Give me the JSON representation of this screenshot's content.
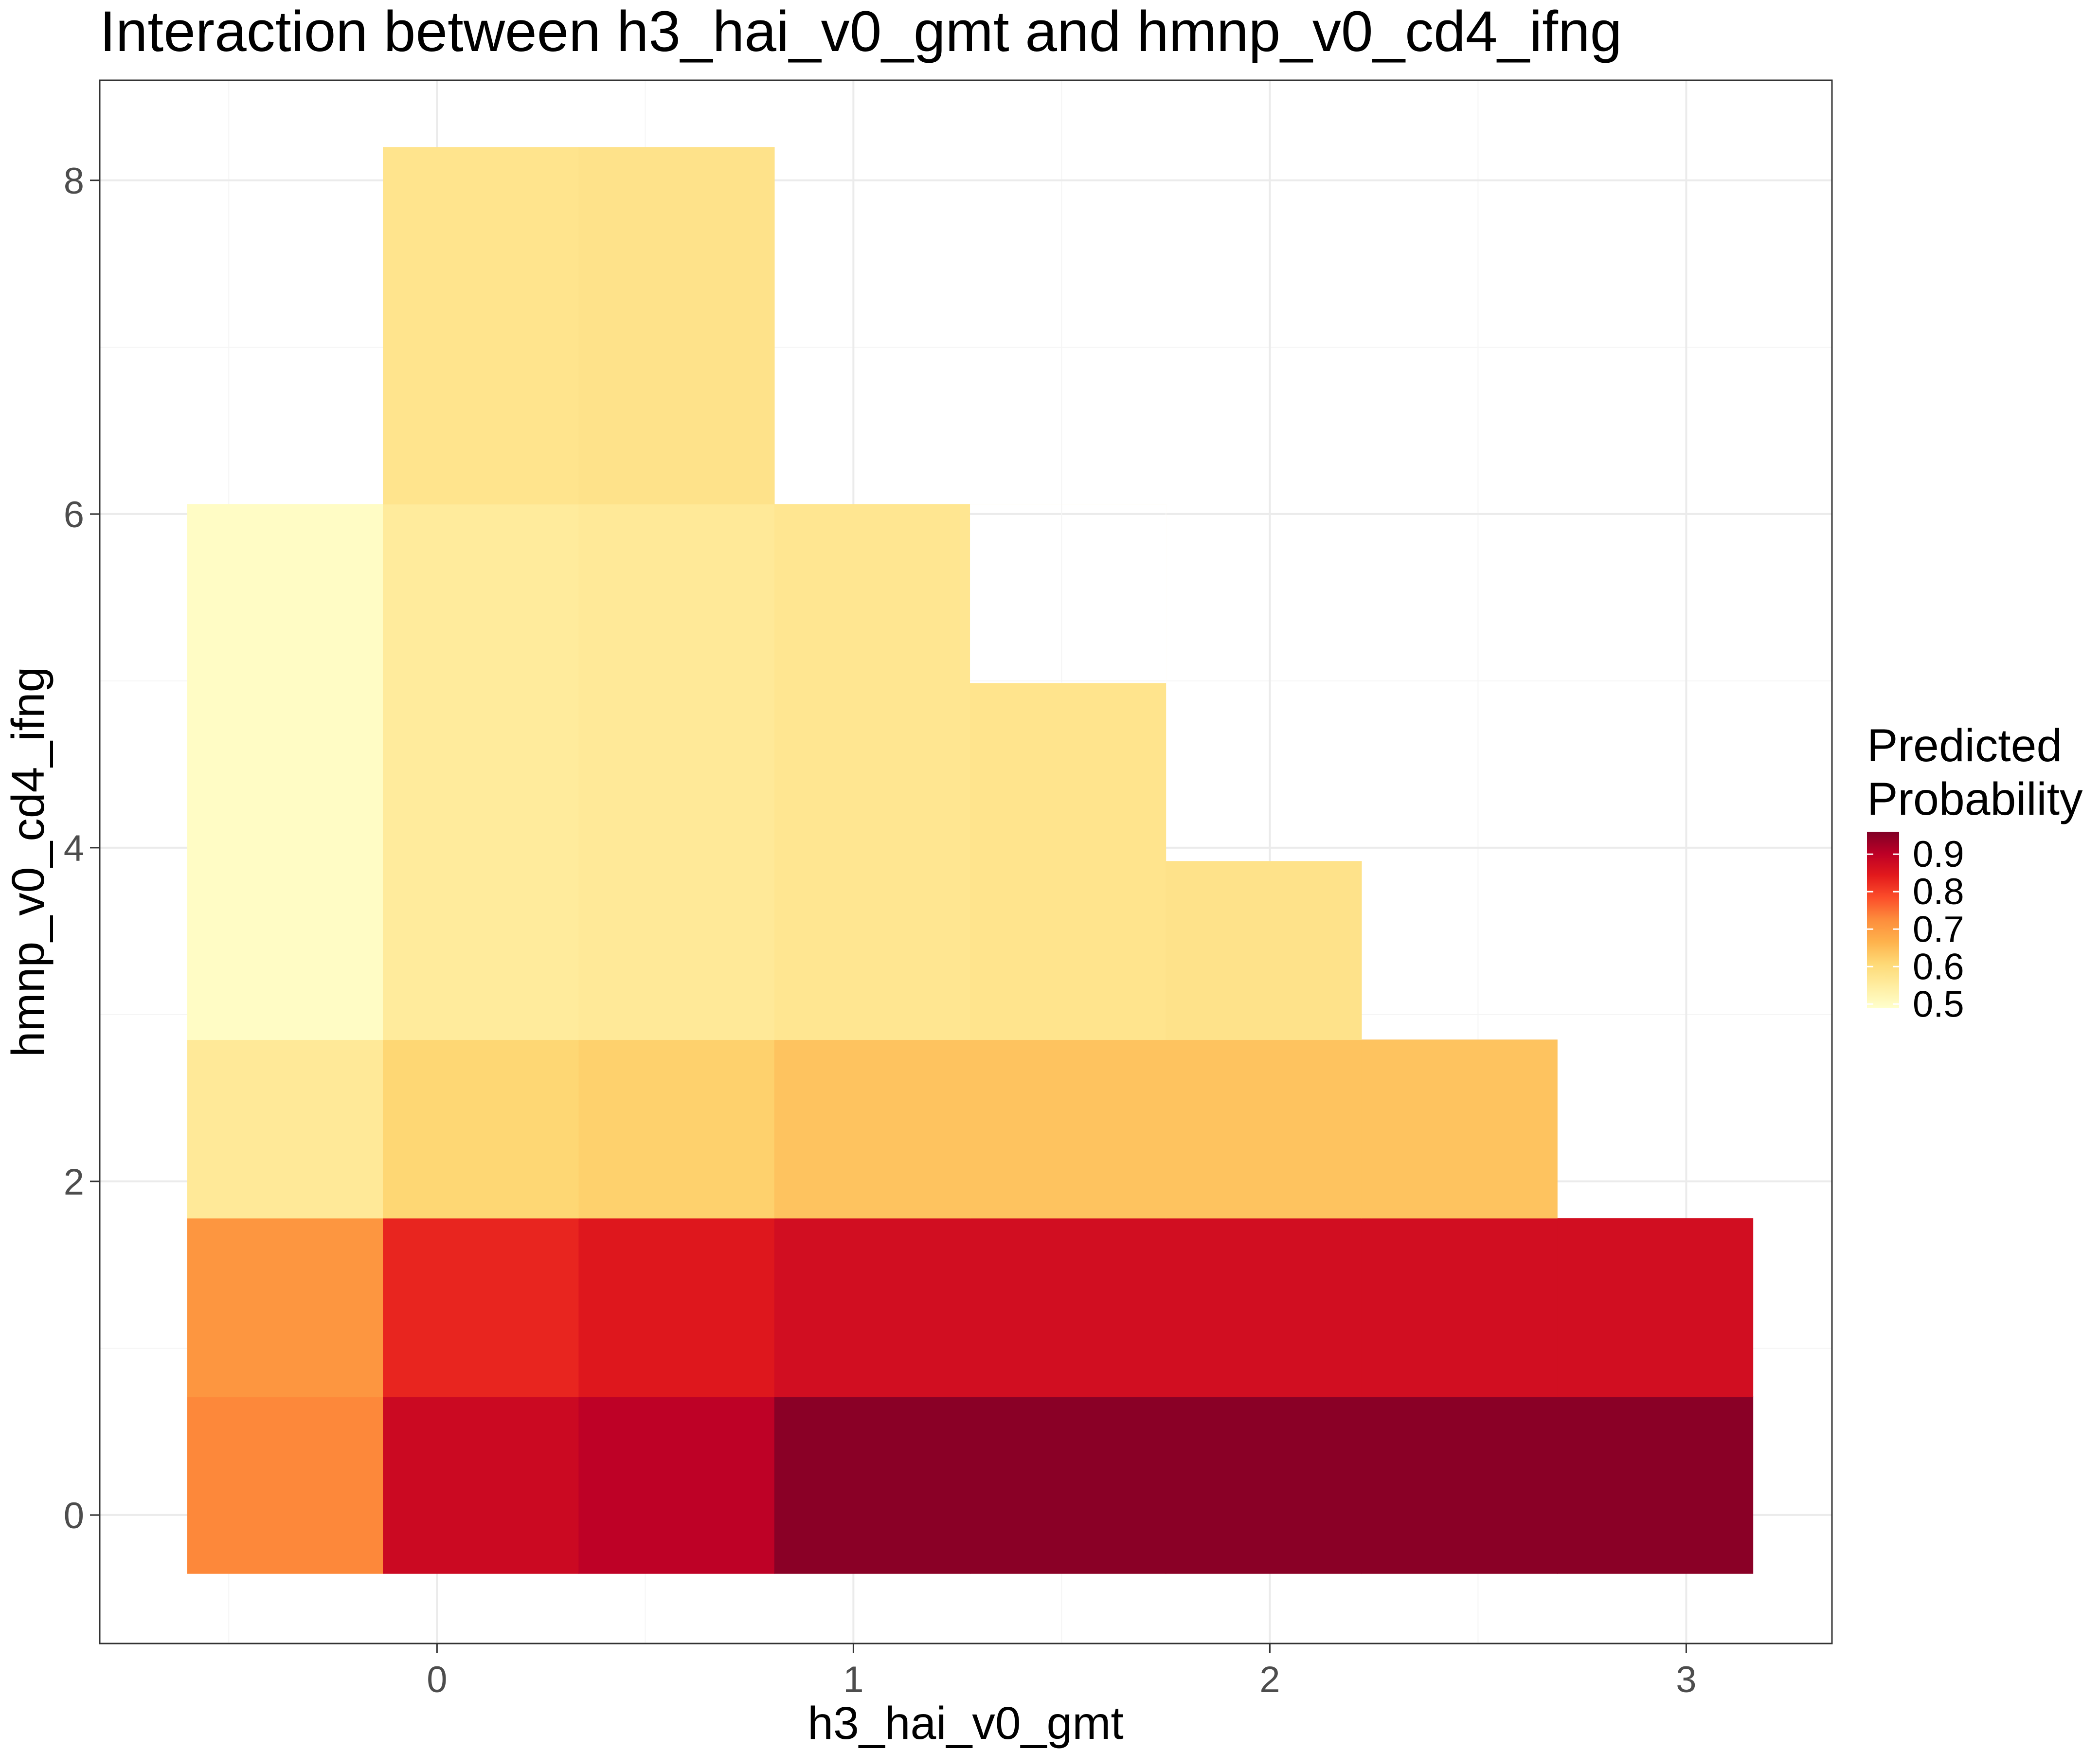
{
  "chart_data": {
    "type": "heatmap",
    "title": "Interaction between h3_hai_v0_gmt and hmnp_v0_cd4_ifng",
    "xlabel": "h3_hai_v0_gmt",
    "ylabel": "hmnp_v0_cd4_ifng",
    "xlim": [
      -0.81,
      3.35
    ],
    "ylim": [
      -0.77,
      8.6
    ],
    "x_ticks": [
      0,
      1,
      2,
      3
    ],
    "y_ticks": [
      0,
      2,
      4,
      6,
      8
    ],
    "x_tick_labels": [
      "0",
      "1",
      "2",
      "3"
    ],
    "y_tick_labels": [
      "0",
      "2",
      "4",
      "6",
      "8"
    ],
    "x_edges": [
      -0.6,
      -0.13,
      0.34,
      0.81,
      1.28,
      1.75,
      2.22,
      2.69,
      3.16
    ],
    "y_edges": [
      -0.35,
      0.71,
      1.78,
      2.85,
      6.06,
      8.2
    ],
    "extra_rows": [
      {
        "y_range": [
          2.85,
          3.92
        ],
        "x_bins": [
          5
        ]
      },
      {
        "y_range": [
          3.92,
          4.99
        ],
        "x_bins": [
          4
        ]
      },
      {
        "y_range": [
          4.99,
          6.06
        ],
        "x_bins": [
          3
        ]
      }
    ],
    "cells": [
      {
        "xi": 0,
        "yi": 0,
        "value": 0.73
      },
      {
        "xi": 1,
        "yi": 0,
        "value": 0.88
      },
      {
        "xi": 2,
        "yi": 0,
        "value": 0.9
      },
      {
        "xi": 3,
        "yi": 0,
        "value": 0.95
      },
      {
        "xi": 4,
        "yi": 0,
        "value": 0.95
      },
      {
        "xi": 5,
        "yi": 0,
        "value": 0.95
      },
      {
        "xi": 6,
        "yi": 0,
        "value": 0.95
      },
      {
        "xi": 7,
        "yi": 0,
        "value": 0.95
      },
      {
        "xi": 0,
        "yi": 1,
        "value": 0.71
      },
      {
        "xi": 1,
        "yi": 1,
        "value": 0.83
      },
      {
        "xi": 2,
        "yi": 1,
        "value": 0.85
      },
      {
        "xi": 3,
        "yi": 1,
        "value": 0.87
      },
      {
        "xi": 4,
        "yi": 1,
        "value": 0.87
      },
      {
        "xi": 5,
        "yi": 1,
        "value": 0.87
      },
      {
        "xi": 6,
        "yi": 1,
        "value": 0.87
      },
      {
        "xi": 7,
        "yi": 1,
        "value": 0.87
      },
      {
        "xi": 0,
        "yi": 2,
        "value": 0.56
      },
      {
        "xi": 1,
        "yi": 2,
        "value": 0.61
      },
      {
        "xi": 2,
        "yi": 2,
        "value": 0.62
      },
      {
        "xi": 3,
        "yi": 2,
        "value": 0.64
      },
      {
        "xi": 4,
        "yi": 2,
        "value": 0.64
      },
      {
        "xi": 5,
        "yi": 2,
        "value": 0.64
      },
      {
        "xi": 6,
        "yi": 2,
        "value": 0.64
      },
      {
        "xi": 0,
        "yi": 3,
        "value": 0.5
      },
      {
        "xi": 1,
        "yi": 3,
        "value": 0.555
      },
      {
        "xi": 2,
        "yi": 3,
        "value": 0.56
      },
      {
        "xi": 3,
        "yi": 3,
        "value": 0.57
      },
      {
        "xi": 1,
        "yi": 4,
        "value": 0.575
      },
      {
        "xi": 2,
        "yi": 4,
        "value": 0.58
      }
    ],
    "extra_cells": [
      {
        "x_range": [
          1.28,
          1.75
        ],
        "y_range": [
          3.92,
          4.99
        ],
        "value": 0.575
      },
      {
        "x_range": [
          1.28,
          1.75
        ],
        "y_range": [
          2.85,
          3.92
        ],
        "value": 0.575
      },
      {
        "x_range": [
          1.28,
          1.75
        ],
        "y_range": [
          4.99,
          6.06
        ],
        "value": 0.575
      },
      {
        "x_range": [
          1.75,
          2.22
        ],
        "y_range": [
          2.85,
          3.92
        ],
        "value": 0.58
      }
    ],
    "legend": {
      "title_lines": [
        "Predicted",
        "Probability"
      ],
      "ticks": [
        0.5,
        0.6,
        0.7,
        0.8,
        0.9
      ],
      "tick_labels": [
        "0.5",
        "0.6",
        "0.7",
        "0.8",
        "0.9"
      ],
      "range": [
        0.49,
        0.96
      ],
      "position": "right"
    },
    "colors": {
      "scale": [
        "#ffffcc",
        "#ffeda0",
        "#fed976",
        "#feb24c",
        "#fd8d3c",
        "#fc4e2a",
        "#e31a1c",
        "#bd0026",
        "#800026"
      ],
      "grid_major": "#ebebeb",
      "grid_minor": "#f5f5f5",
      "panel_border": "#333333"
    },
    "grid": true
  }
}
